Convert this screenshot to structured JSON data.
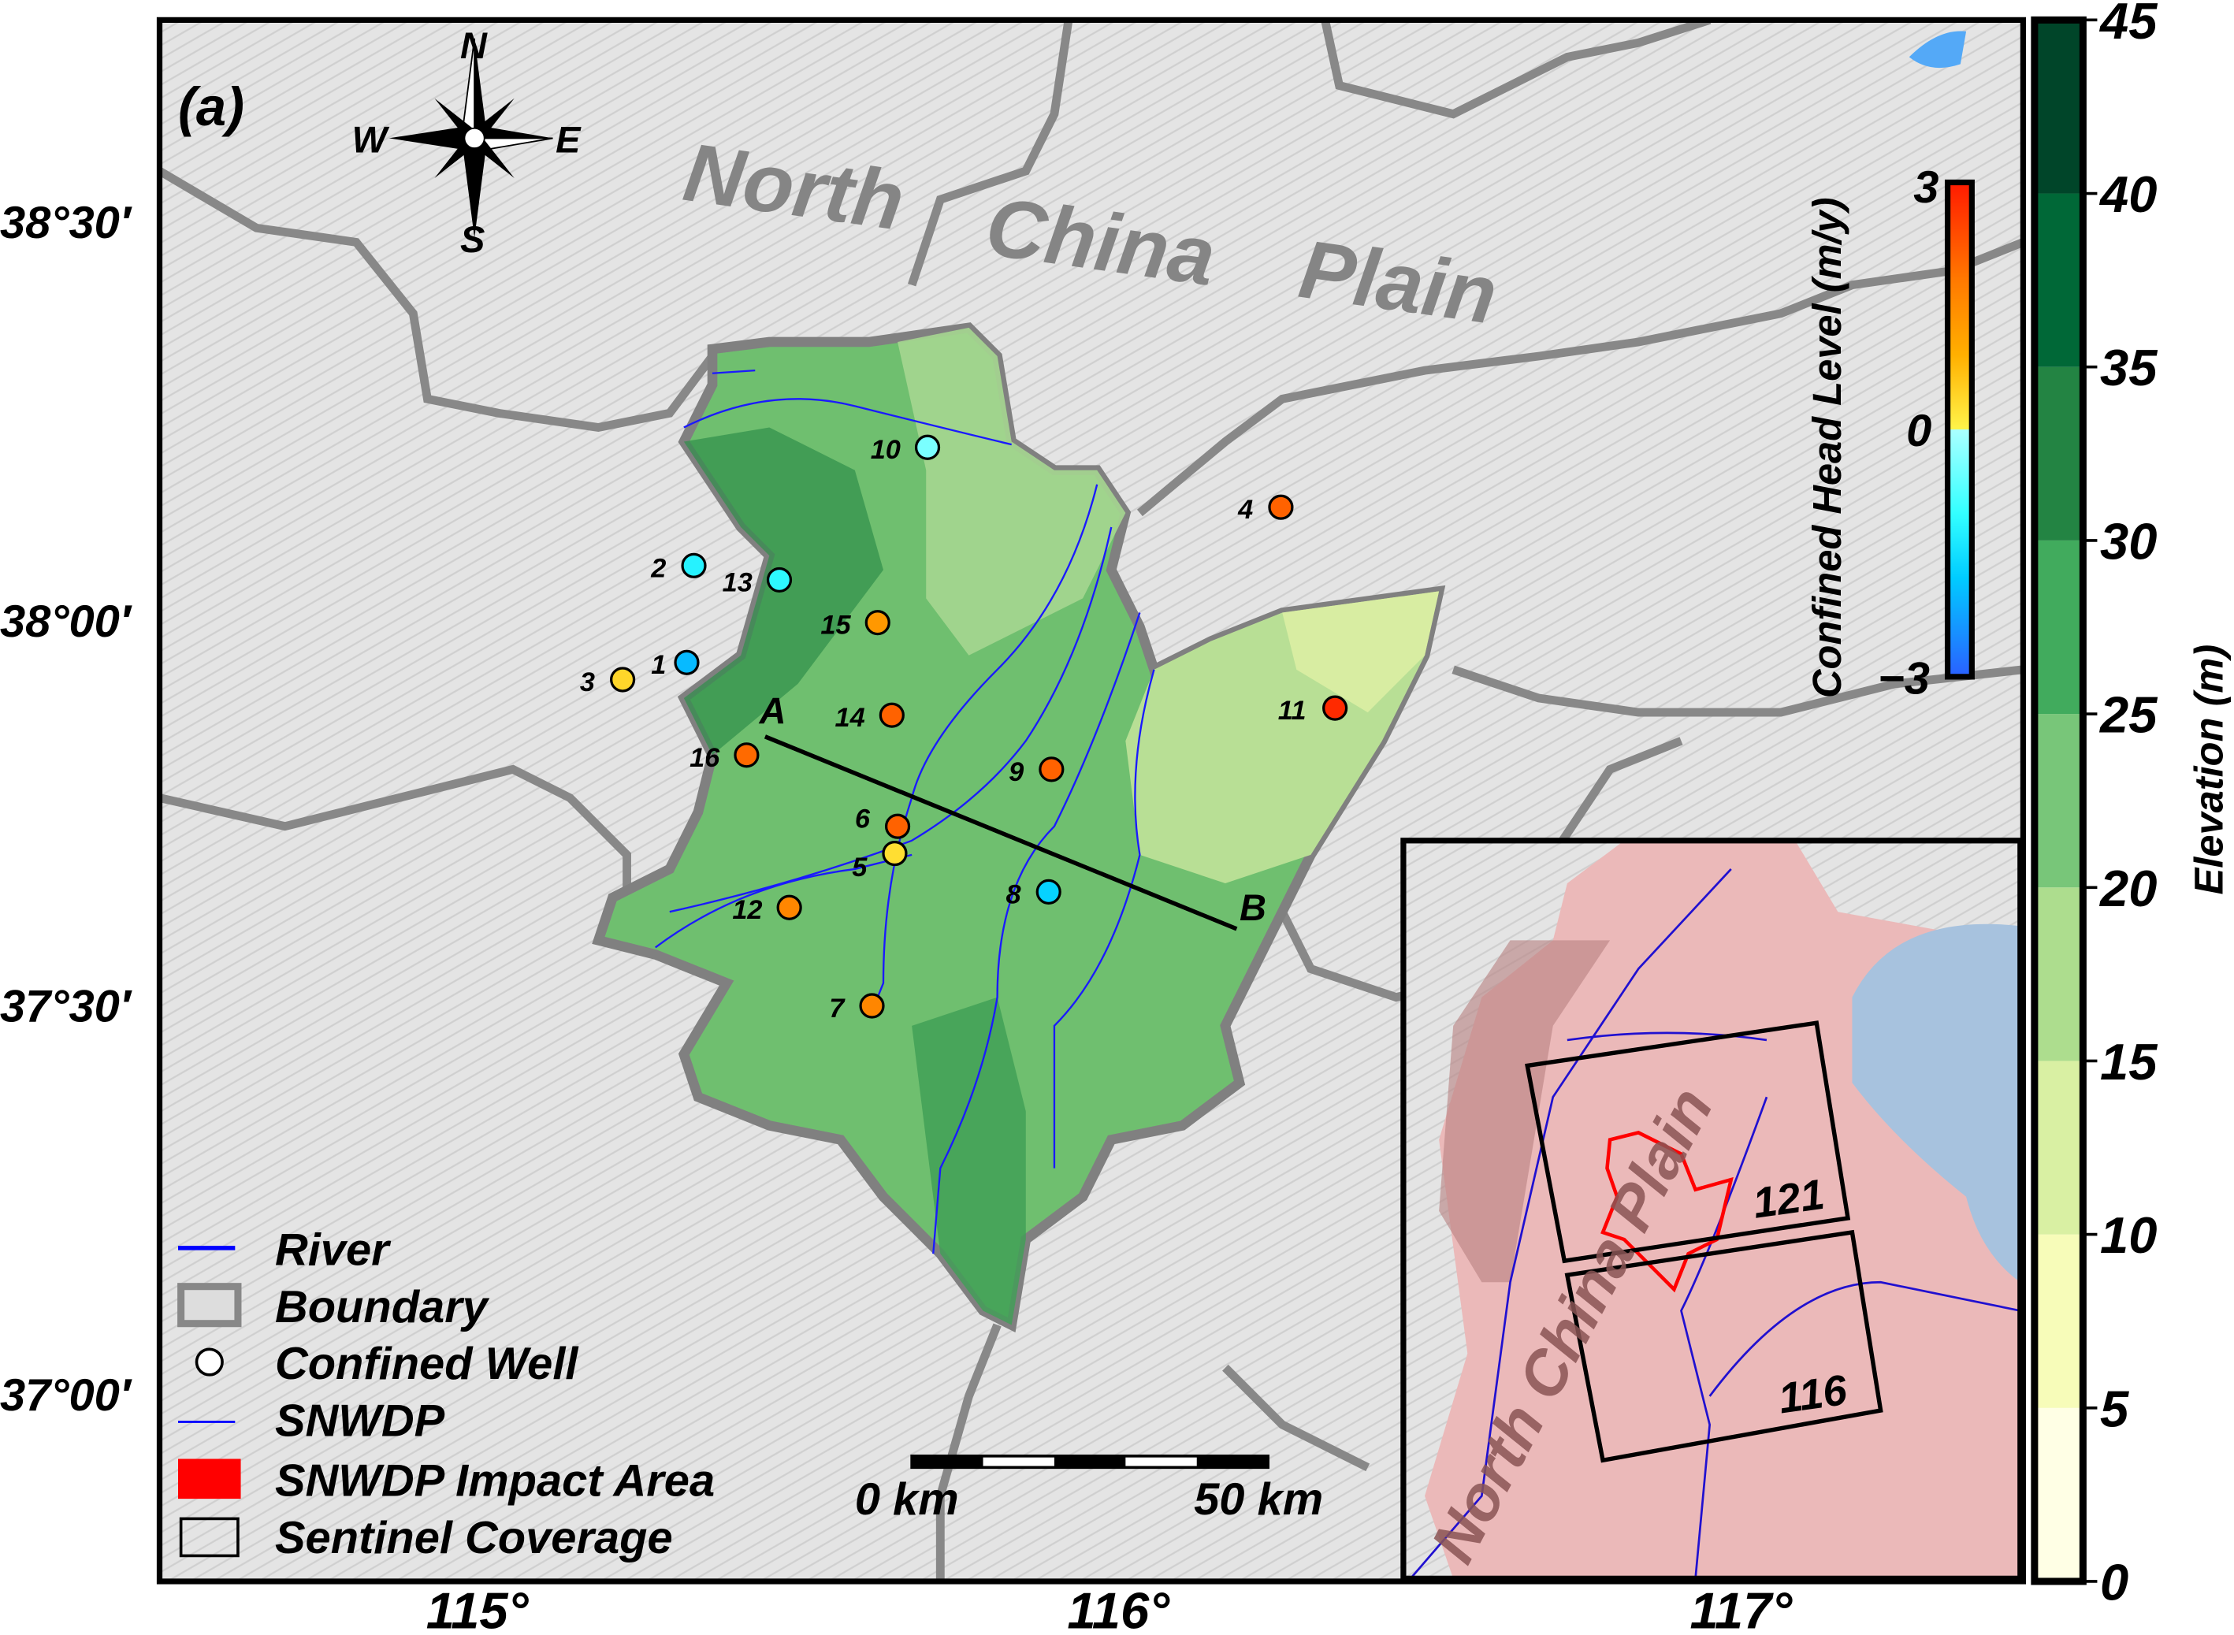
{
  "panel_label": "(a)",
  "compass": {
    "n": "N",
    "s": "S",
    "e": "E",
    "w": "W"
  },
  "region_label": [
    "North",
    "China",
    "Plain"
  ],
  "lat_labels": [
    "38°30′",
    "38°00′",
    "37°30′",
    "37°00′"
  ],
  "lon_labels": [
    "115°",
    "116°",
    "117°"
  ],
  "profile": {
    "start": "A",
    "end": "B"
  },
  "wells": [
    {
      "id": "1",
      "value": -2.0
    },
    {
      "id": "2",
      "value": -1.2
    },
    {
      "id": "3",
      "value": 0.4
    },
    {
      "id": "4",
      "value": 2.1
    },
    {
      "id": "5",
      "value": 0.3
    },
    {
      "id": "6",
      "value": 2.1
    },
    {
      "id": "7",
      "value": 1.6
    },
    {
      "id": "8",
      "value": -1.7
    },
    {
      "id": "9",
      "value": 2.1
    },
    {
      "id": "10",
      "value": -0.4
    },
    {
      "id": "11",
      "value": 2.8
    },
    {
      "id": "12",
      "value": 1.6
    },
    {
      "id": "13",
      "value": -1.1
    },
    {
      "id": "14",
      "value": 2.1
    },
    {
      "id": "15",
      "value": 1.3
    },
    {
      "id": "16",
      "value": 2.0
    }
  ],
  "head_colorbar": {
    "title": "Confined Head Level (m/y)",
    "ticks": [
      "3",
      "0",
      "−3"
    ],
    "range": [
      -3,
      3
    ]
  },
  "elevation_colorbar": {
    "title": "Elevation (m)",
    "ticks": [
      "45",
      "40",
      "35",
      "30",
      "25",
      "20",
      "15",
      "10",
      "5",
      "0"
    ],
    "colors": [
      "#ffffe5",
      "#f7fcb9",
      "#d9f0a3",
      "#addd8e",
      "#78c679",
      "#41ab5d",
      "#238443",
      "#006837",
      "#004529"
    ]
  },
  "legend": {
    "river": "River",
    "boundary": "Boundary",
    "well": "Confined Well",
    "snwdp": "SNWDP",
    "impact": "SNWDP Impact Area",
    "sentinel": "Sentinel Coverage"
  },
  "scale_bar": {
    "start": "0 km",
    "end": "50 km"
  },
  "inset": {
    "region_label": "North China Plain",
    "track_a": "121",
    "track_b": "116"
  },
  "colors": {
    "river": "#0000ff",
    "boundary": "#808080",
    "impact": "#ff0000",
    "background": "#e6e6e6",
    "inset_plain": "#ebb9b9",
    "sea": "#a7c2de"
  }
}
